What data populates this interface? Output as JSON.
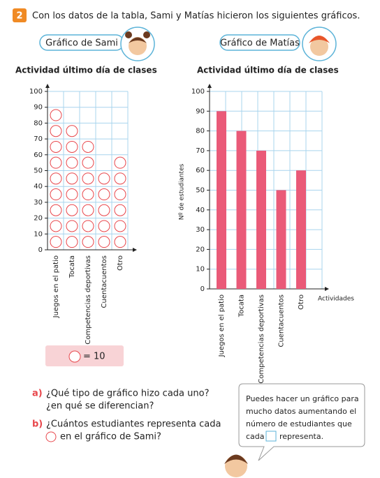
{
  "header": {
    "number": "2",
    "text": "Con los datos de la tabla, Sami y Matías hicieron los siguientes gráficos."
  },
  "tags": {
    "sami": "Gráfico de Sami",
    "matias": "Gráfico de Matías"
  },
  "chart_data": [
    {
      "type": "pictograph",
      "title": "Actividad último día de clases",
      "categories": [
        "Juegos en el patio",
        "Tocata",
        "Competencias deportivas",
        "Cuentacuentos",
        "Otro"
      ],
      "values": [
        90,
        80,
        70,
        50,
        60
      ],
      "color": "#e8474c",
      "ylim": [
        0,
        100
      ],
      "yticks": [
        0,
        10,
        20,
        30,
        40,
        50,
        60,
        70,
        80,
        90,
        100
      ],
      "grid": true,
      "key": {
        "value": 10,
        "label": "= 10"
      }
    },
    {
      "type": "bar",
      "title": "Actividad último día de clases",
      "ylabel": "Nº de estudiantes",
      "xlabel": "Actividades",
      "categories": [
        "Juegos en el patio",
        "Tocata",
        "Competencias deportivas",
        "Cuentacuentos",
        "Otro"
      ],
      "values": [
        90,
        80,
        70,
        50,
        60
      ],
      "color": "#ea5a78",
      "ylim": [
        0,
        100
      ],
      "yticks": [
        0,
        10,
        20,
        30,
        40,
        50,
        60,
        70,
        80,
        90,
        100
      ],
      "grid": true
    }
  ],
  "questions": {
    "a": {
      "label": "a)",
      "lines": [
        "¿Qué tipo de gráfico hizo cada uno?",
        "¿en qué se diferencian?"
      ]
    },
    "b": {
      "label": "b)",
      "lines": [
        "¿Cuántos estudiantes representa cada",
        "en el gráfico de Sami?"
      ]
    }
  },
  "bubble": {
    "lines": [
      "Puedes hacer un gráfico para",
      "mucho datos aumentando el",
      "número de estudiantes que"
    ],
    "before": "cada",
    "after": "representa."
  }
}
